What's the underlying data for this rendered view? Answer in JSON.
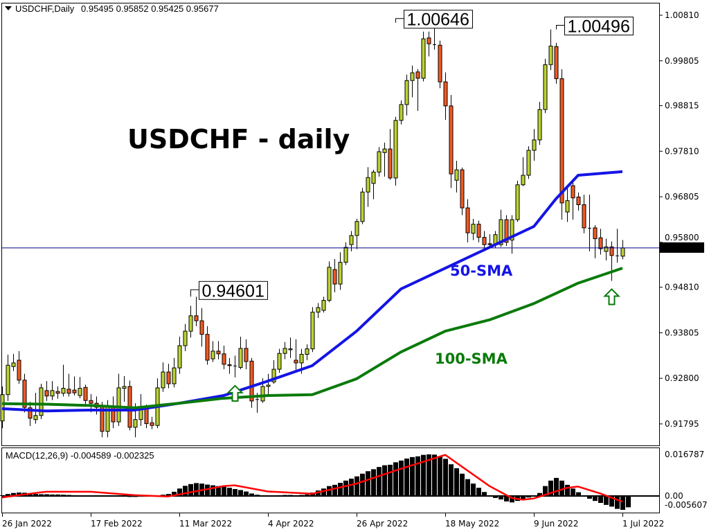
{
  "header": {
    "symbol_timeframe": "USDCHF,Daily",
    "ohlc_readout": "0.95495 0.95852 0.95425 0.95677"
  },
  "chart_data": [
    {
      "type": "candlestick",
      "title": "USDCHF - daily",
      "first_date": "26 Jan 2022",
      "ylim": [
        0.9132,
        1.0107
      ],
      "y_ticks": [
        "1.00810",
        "0.99805",
        "0.98815",
        "0.97810",
        "0.96805",
        "0.95800",
        "0.94810",
        "0.93805",
        "0.92800",
        "0.91795"
      ],
      "x_ticks": [
        "26 Jan 2022",
        "17 Feb 2022",
        "11 Mar 2022",
        "4 Apr 2022",
        "26 Apr 2022",
        "18 May 2022",
        "9 Jun 2022",
        "1 Jul 2022"
      ],
      "current_price": "0.95677",
      "colors": {
        "bull": "#bcd232",
        "bear": "#f05a22",
        "sma50": "#1414e6",
        "sma100": "#0a7a0a",
        "price_line": "#00008b"
      },
      "annotations": [
        {
          "text": "1.00646",
          "date": "5 May 2022",
          "price": 1.00646
        },
        {
          "text": "1.00496",
          "date": "15 Jun 2022",
          "price": 1.00496
        },
        {
          "text": "0.94601",
          "date": "15 Mar 2022",
          "price": 0.94601
        }
      ],
      "arrows": [
        {
          "type": "up-arrow",
          "date": "25 Mar 2022"
        },
        {
          "type": "up-arrow",
          "date": "29 Jun 2022"
        }
      ],
      "candles_ohlc": [
        [
          0.9186,
          0.9262,
          0.917,
          0.9244
        ],
        [
          0.9244,
          0.9332,
          0.923,
          0.9309
        ],
        [
          0.9306,
          0.9334,
          0.9296,
          0.9314
        ],
        [
          0.932,
          0.934,
          0.9268,
          0.9276
        ],
        [
          0.9276,
          0.929,
          0.9205,
          0.9216
        ],
        [
          0.9215,
          0.9228,
          0.9175,
          0.9192
        ],
        [
          0.9189,
          0.9248,
          0.918,
          0.9198
        ],
        [
          0.9198,
          0.9268,
          0.919,
          0.9259
        ],
        [
          0.9253,
          0.9274,
          0.923,
          0.9241
        ],
        [
          0.9241,
          0.9274,
          0.9232,
          0.9253
        ],
        [
          0.9251,
          0.9262,
          0.9235,
          0.9247
        ],
        [
          0.9247,
          0.931,
          0.924,
          0.9258
        ],
        [
          0.9256,
          0.929,
          0.924,
          0.9247
        ],
        [
          0.9254,
          0.9284,
          0.9242,
          0.9248
        ],
        [
          0.9242,
          0.9283,
          0.9236,
          0.9258
        ],
        [
          0.926,
          0.9266,
          0.9218,
          0.9231
        ],
        [
          0.9231,
          0.9245,
          0.9205,
          0.9225
        ],
        [
          0.9225,
          0.924,
          0.92,
          0.9216
        ],
        [
          0.922,
          0.9228,
          0.915,
          0.9163
        ],
        [
          0.9163,
          0.9232,
          0.915,
          0.922
        ],
        [
          0.9218,
          0.924,
          0.917,
          0.9184
        ],
        [
          0.9184,
          0.929,
          0.9175,
          0.9259
        ],
        [
          0.9258,
          0.9285,
          0.9228,
          0.9262
        ],
        [
          0.9262,
          0.9275,
          0.9165,
          0.9172
        ],
        [
          0.9172,
          0.9225,
          0.915,
          0.9189
        ],
        [
          0.9189,
          0.9245,
          0.9175,
          0.9213
        ],
        [
          0.9213,
          0.9222,
          0.917,
          0.918
        ],
        [
          0.9182,
          0.9195,
          0.9168,
          0.9176
        ],
        [
          0.9176,
          0.928,
          0.917,
          0.9259
        ],
        [
          0.9259,
          0.9315,
          0.925,
          0.9294
        ],
        [
          0.9294,
          0.9312,
          0.9258,
          0.9268
        ],
        [
          0.9268,
          0.9325,
          0.926,
          0.9303
        ],
        [
          0.9303,
          0.9372,
          0.929,
          0.9352
        ],
        [
          0.9352,
          0.94,
          0.934,
          0.9384
        ],
        [
          0.9384,
          0.944,
          0.937,
          0.9418
        ],
        [
          0.9418,
          0.946,
          0.9395,
          0.9407
        ],
        [
          0.9407,
          0.9435,
          0.935,
          0.9377
        ],
        [
          0.9377,
          0.9395,
          0.931,
          0.932
        ],
        [
          0.9323,
          0.9362,
          0.9316,
          0.934
        ],
        [
          0.934,
          0.9362,
          0.9322,
          0.9334
        ],
        [
          0.9334,
          0.9352,
          0.93,
          0.9311
        ],
        [
          0.931,
          0.9325,
          0.929,
          0.9308
        ],
        [
          0.9308,
          0.933,
          0.9282,
          0.9308
        ],
        [
          0.9304,
          0.9372,
          0.93,
          0.9346
        ],
        [
          0.9346,
          0.9366,
          0.93,
          0.9317
        ],
        [
          0.9318,
          0.9325,
          0.9215,
          0.923
        ],
        [
          0.9234,
          0.9248,
          0.9204,
          0.9233
        ],
        [
          0.923,
          0.928,
          0.9226,
          0.9262
        ],
        [
          0.9262,
          0.929,
          0.924,
          0.9265
        ],
        [
          0.9272,
          0.932,
          0.9268,
          0.93
        ],
        [
          0.93,
          0.9345,
          0.9292,
          0.9335
        ],
        [
          0.9335,
          0.936,
          0.9322,
          0.9346
        ],
        [
          0.9343,
          0.937,
          0.9325,
          0.9345
        ],
        [
          0.932,
          0.9366,
          0.9298,
          0.9314
        ],
        [
          0.9314,
          0.9345,
          0.929,
          0.9333
        ],
        [
          0.9333,
          0.9355,
          0.932,
          0.9345
        ],
        [
          0.9345,
          0.9437,
          0.9338,
          0.9426
        ],
        [
          0.9426,
          0.9446,
          0.9413,
          0.9436
        ],
        [
          0.943,
          0.946,
          0.9425,
          0.9452
        ],
        [
          0.9452,
          0.9538,
          0.9448,
          0.9525
        ],
        [
          0.952,
          0.9543,
          0.947,
          0.9488
        ],
        [
          0.9488,
          0.9558,
          0.9475,
          0.9536
        ],
        [
          0.9536,
          0.958,
          0.953,
          0.9569
        ],
        [
          0.9575,
          0.9605,
          0.956,
          0.9595
        ],
        [
          0.9595,
          0.9632,
          0.9565,
          0.9626
        ],
        [
          0.9626,
          0.97,
          0.962,
          0.9691
        ],
        [
          0.9691,
          0.9746,
          0.9658,
          0.9723
        ],
        [
          0.971,
          0.974,
          0.9675,
          0.9735
        ],
        [
          0.9735,
          0.979,
          0.9725,
          0.978
        ],
        [
          0.9778,
          0.98,
          0.9725,
          0.9786
        ],
        [
          0.9786,
          0.983,
          0.9718,
          0.9722
        ],
        [
          0.9722,
          0.9857,
          0.9705,
          0.9849
        ],
        [
          0.9849,
          0.9893,
          0.984,
          0.9884
        ],
        [
          0.9884,
          0.995,
          0.986,
          0.9937
        ],
        [
          0.9937,
          0.997,
          0.99,
          0.9954
        ],
        [
          0.9956,
          0.9962,
          0.987,
          0.9942
        ],
        [
          0.9942,
          1.0045,
          0.9935,
          1.0029
        ],
        [
          1.0031,
          1.0045,
          0.999,
          1.0018
        ],
        [
          1.0017,
          1.00646,
          1.0005,
          1.0017
        ],
        [
          1.0015,
          1.0025,
          0.992,
          0.9934
        ],
        [
          0.9934,
          0.9955,
          0.985,
          0.9881
        ],
        [
          0.9881,
          0.9905,
          0.97,
          0.9731
        ],
        [
          0.9717,
          0.976,
          0.969,
          0.974
        ],
        [
          0.974,
          0.9745,
          0.964,
          0.9656
        ],
        [
          0.9656,
          0.9675,
          0.958,
          0.9601
        ],
        [
          0.96,
          0.9632,
          0.9585,
          0.962
        ],
        [
          0.962,
          0.9628,
          0.958,
          0.9591
        ],
        [
          0.9591,
          0.9605,
          0.956,
          0.9575
        ],
        [
          0.9577,
          0.9598,
          0.957,
          0.9575
        ],
        [
          0.9575,
          0.9605,
          0.9568,
          0.9597
        ],
        [
          0.9575,
          0.9652,
          0.957,
          0.963
        ],
        [
          0.963,
          0.964,
          0.9572,
          0.958
        ],
        [
          0.9585,
          0.964,
          0.9555,
          0.963
        ],
        [
          0.963,
          0.9716,
          0.9625,
          0.9707
        ],
        [
          0.9707,
          0.9768,
          0.9704,
          0.9728
        ],
        [
          0.9728,
          0.9792,
          0.972,
          0.9783
        ],
        [
          0.9783,
          0.983,
          0.976,
          0.9806
        ],
        [
          0.9806,
          0.989,
          0.9795,
          0.9873
        ],
        [
          0.9873,
          0.9985,
          0.9865,
          0.9972
        ],
        [
          0.9972,
          1.00496,
          0.996,
          1.0013
        ],
        [
          1.0012,
          1.002,
          0.993,
          0.9941
        ],
        [
          0.9941,
          0.9962,
          0.963,
          0.9667
        ],
        [
          0.9647,
          0.97,
          0.9625,
          0.9672
        ],
        [
          0.9705,
          0.9716,
          0.963,
          0.9678
        ],
        [
          0.968,
          0.969,
          0.965,
          0.9663
        ],
        [
          0.9663,
          0.9685,
          0.96,
          0.9612
        ],
        [
          0.9612,
          0.9685,
          0.956,
          0.9612
        ],
        [
          0.9612,
          0.9618,
          0.9545,
          0.9588
        ],
        [
          0.959,
          0.961,
          0.9553,
          0.9566
        ],
        [
          0.956,
          0.9588,
          0.954,
          0.957
        ],
        [
          0.957,
          0.9582,
          0.9495,
          0.9551
        ],
        [
          0.9551,
          0.961,
          0.9535,
          0.9551
        ],
        [
          0.95495,
          0.95852,
          0.95425,
          0.95677
        ]
      ],
      "series": [
        {
          "name": "50-SMA",
          "points": [
            [
              "26 Jan 2022",
              0.9213
            ],
            [
              "7 Feb 2022",
              0.9208
            ],
            [
              "17 Feb 2022",
              0.921
            ],
            [
              "1 Mar 2022",
              0.921
            ],
            [
              "11 Mar 2022",
              0.9225
            ],
            [
              "23 Mar 2022",
              0.9242
            ],
            [
              "4 Apr 2022",
              0.9274
            ],
            [
              "14 Apr 2022",
              0.9308
            ],
            [
              "26 Apr 2022",
              0.9384
            ],
            [
              "6 May 2022",
              0.9477
            ],
            [
              "18 May 2022",
              0.9523
            ],
            [
              "30 May 2022",
              0.9569
            ],
            [
              "9 Jun 2022",
              0.9615
            ],
            [
              "15 Jun 2022",
              0.9676
            ],
            [
              "21 Jun 2022",
              0.9728
            ],
            [
              "1 Jul 2022",
              0.9736
            ]
          ]
        },
        {
          "name": "100-SMA",
          "points": [
            [
              "26 Jan 2022",
              0.9224
            ],
            [
              "7 Feb 2022",
              0.9223
            ],
            [
              "17 Feb 2022",
              0.922
            ],
            [
              "1 Mar 2022",
              0.9215
            ],
            [
              "11 Mar 2022",
              0.9225
            ],
            [
              "23 Mar 2022",
              0.9236
            ],
            [
              "4 Apr 2022",
              0.9242
            ],
            [
              "14 Apr 2022",
              0.9244
            ],
            [
              "26 Apr 2022",
              0.9279
            ],
            [
              "6 May 2022",
              0.9338
            ],
            [
              "18 May 2022",
              0.9384
            ],
            [
              "30 May 2022",
              0.9409
            ],
            [
              "9 Jun 2022",
              0.9445
            ],
            [
              "21 Jun 2022",
              0.949
            ],
            [
              "1 Jul 2022",
              0.9523
            ]
          ]
        }
      ]
    },
    {
      "type": "bar+line",
      "title": "MACD(12,26,9) -0.004589 -0.002325",
      "ylim": [
        -0.00672,
        0.0193
      ],
      "y_ticks": [
        "0.016787",
        "0.00",
        "-0.005607"
      ],
      "colors": {
        "histogram": "#000000",
        "signal": "#ff0000"
      },
      "histogram": [
        0.0003,
        0.0008,
        0.0012,
        0.0014,
        0.0013,
        0.001,
        0.0008,
        0.0007,
        0.0007,
        0.0006,
        0.0006,
        0.0005,
        0.0004,
        0.0003,
        0.0002,
        0.0001,
        0.0,
        -0.0001,
        -0.0002,
        -0.0001,
        0.0,
        -0.0002,
        -0.0003,
        -0.0004,
        -0.0004,
        -0.0003,
        -0.0002,
        -0.0001,
        0.0002,
        0.0005,
        0.0008,
        0.0017,
        0.003,
        0.0041,
        0.0048,
        0.0052,
        0.005,
        0.0046,
        0.0043,
        0.004,
        0.0037,
        0.0033,
        0.0028,
        0.0024,
        0.0018,
        0.001,
        0.0005,
        0.0002,
        0.0001,
        0.0002,
        0.0003,
        0.0004,
        0.0004,
        0.0003,
        0.0004,
        0.0006,
        0.0014,
        0.0022,
        0.003,
        0.004,
        0.0045,
        0.0053,
        0.0062,
        0.007,
        0.0079,
        0.009,
        0.01,
        0.0108,
        0.0117,
        0.0124,
        0.0126,
        0.0136,
        0.0143,
        0.0151,
        0.0157,
        0.016,
        0.0166,
        0.0168,
        0.0167,
        0.016,
        0.015,
        0.0128,
        0.0112,
        0.009,
        0.0068,
        0.005,
        0.0033,
        0.0016,
        0.0003,
        -0.0008,
        -0.0014,
        -0.0022,
        -0.0026,
        -0.002,
        -0.0012,
        -0.0006,
        0.0,
        0.0012,
        0.004,
        0.0062,
        0.0073,
        0.0062,
        0.0045,
        0.003,
        0.0015,
        0.0002,
        -0.0011,
        -0.002,
        -0.0028,
        -0.0036,
        -0.0043,
        -0.0052,
        -0.0056,
        -0.004589
      ],
      "signal": [
        [
          "26 Jan 2022",
          -0.0006
        ],
        [
          "3 Feb 2022",
          0.0012
        ],
        [
          "7 Feb 2022",
          0.0017
        ],
        [
          "17 Feb 2022",
          0.0017
        ],
        [
          "1 Mar 2022",
          0.0003
        ],
        [
          "9 Mar 2022",
          -0.0002
        ],
        [
          "23 Mar 2022",
          0.004
        ],
        [
          "25 Mar 2022",
          0.0043
        ],
        [
          "4 Apr 2022",
          0.0018
        ],
        [
          "14 Apr 2022",
          0.0009
        ],
        [
          "26 Apr 2022",
          0.005
        ],
        [
          "6 May 2022",
          0.011
        ],
        [
          "18 May 2022",
          0.0166
        ],
        [
          "30 May 2022",
          0.004
        ],
        [
          "3 Jun 2022",
          -0.0008
        ],
        [
          "7 Jun 2022",
          -0.0015
        ],
        [
          "9 Jun 2022",
          -0.001
        ],
        [
          "17 Jun 2022",
          0.0033
        ],
        [
          "21 Jun 2022",
          0.0038
        ],
        [
          "27 Jun 2022",
          0.001
        ],
        [
          "1 Jul 2022",
          -0.002325
        ]
      ]
    }
  ]
}
